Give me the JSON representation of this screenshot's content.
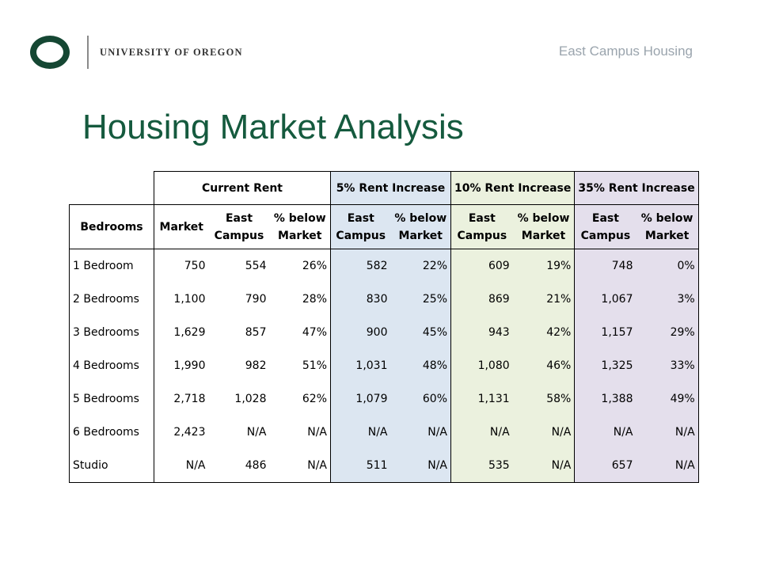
{
  "branding": {
    "logo_mark": "O",
    "university_name": "UNIVERSITY OF OREGON",
    "brand_color": "#154733"
  },
  "header": {
    "section_label": "East Campus Housing"
  },
  "page": {
    "title": "Housing Market Analysis",
    "title_color": "#155a3e"
  },
  "table": {
    "groups": {
      "current": "Current Rent",
      "inc5": "5% Rent Increase",
      "inc10": "10% Rent Increase",
      "inc35": "35% Rent Increase"
    },
    "columns": {
      "bedrooms": "Bedrooms",
      "market": "Market",
      "east_campus": "East Campus",
      "below_market": "% below Market"
    },
    "group_colors": {
      "inc5": "#dce6f1",
      "inc10": "#ebf1de",
      "inc35": "#e4dfec"
    },
    "rows": [
      [
        "1 Bedroom",
        "750",
        "554",
        "26%",
        "582",
        "22%",
        "609",
        "19%",
        "748",
        "0%"
      ],
      [
        "2 Bedrooms",
        "1,100",
        "790",
        "28%",
        "830",
        "25%",
        "869",
        "21%",
        "1,067",
        "3%"
      ],
      [
        "3 Bedrooms",
        "1,629",
        "857",
        "47%",
        "900",
        "45%",
        "943",
        "42%",
        "1,157",
        "29%"
      ],
      [
        "4 Bedrooms",
        "1,990",
        "982",
        "51%",
        "1,031",
        "48%",
        "1,080",
        "46%",
        "1,325",
        "33%"
      ],
      [
        "5 Bedrooms",
        "2,718",
        "1,028",
        "62%",
        "1,079",
        "60%",
        "1,131",
        "58%",
        "1,388",
        "49%"
      ],
      [
        "6 Bedrooms",
        "2,423",
        "N/A",
        "N/A",
        "N/A",
        "N/A",
        "N/A",
        "N/A",
        "N/A",
        "N/A"
      ],
      [
        "Studio",
        "N/A",
        "486",
        "N/A",
        "511",
        "N/A",
        "535",
        "N/A",
        "657",
        "N/A"
      ]
    ]
  }
}
